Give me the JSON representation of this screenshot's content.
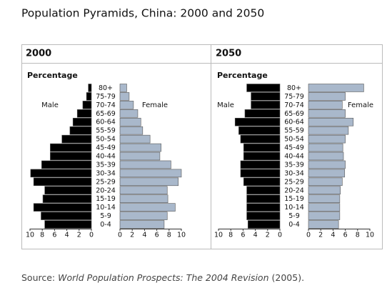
{
  "title": "Population Pyramids, China: 2000 and 2050",
  "source": {
    "prefix": "Source:",
    "italic": "World Population Prospects: The 2004 Revision",
    "suffix": "(2005)."
  },
  "chart_data": [
    {
      "type": "pyramid",
      "title": "2000",
      "subtitle": "Percentage",
      "categories": [
        "80+",
        "75-79",
        "70-74",
        "65-69",
        "60-64",
        "55-59",
        "50-54",
        "45-49",
        "40-44",
        "35-39",
        "30-34",
        "25-29",
        "20-24",
        "15-19",
        "10-14",
        "5-9",
        "0-4"
      ],
      "series": [
        {
          "name": "Male",
          "color": "#000000",
          "values": [
            0.5,
            0.8,
            1.4,
            2.3,
            3.0,
            3.5,
            4.8,
            6.7,
            6.7,
            8.1,
            9.9,
            9.4,
            7.6,
            7.9,
            9.4,
            8.2,
            7.6
          ]
        },
        {
          "name": "Female",
          "color": "#a9b8cb",
          "values": [
            1.1,
            1.5,
            2.2,
            2.9,
            3.4,
            3.7,
            4.9,
            6.7,
            6.5,
            8.3,
            10.0,
            9.5,
            7.7,
            7.8,
            9.0,
            7.7,
            7.2
          ]
        }
      ],
      "xlim": [
        0,
        10
      ],
      "xticks": [
        0,
        2,
        4,
        6,
        8,
        10
      ]
    },
    {
      "type": "pyramid",
      "title": "2050",
      "subtitle": "Percentage",
      "categories": [
        "80+",
        "75-79",
        "70-74",
        "65-69",
        "60-64",
        "55-59",
        "50-54",
        "45-49",
        "40-44",
        "35-39",
        "30-34",
        "25-29",
        "20-24",
        "15-19",
        "10-14",
        "5-9",
        "0-4"
      ],
      "series": [
        {
          "name": "Male",
          "color": "#000000",
          "values": [
            5.4,
            4.7,
            4.7,
            5.7,
            7.3,
            6.7,
            6.4,
            5.9,
            5.9,
            6.4,
            6.4,
            5.9,
            5.4,
            5.4,
            5.4,
            5.4,
            5.2
          ]
        },
        {
          "name": "Female",
          "color": "#a9b8cb",
          "values": [
            9.0,
            6.0,
            5.5,
            6.0,
            7.3,
            6.5,
            6.0,
            5.6,
            5.7,
            6.0,
            5.9,
            5.5,
            5.2,
            5.1,
            5.1,
            5.1,
            4.9
          ]
        }
      ],
      "xlim": [
        0,
        10
      ],
      "xticks": [
        0,
        2,
        4,
        6,
        8,
        10
      ]
    }
  ]
}
